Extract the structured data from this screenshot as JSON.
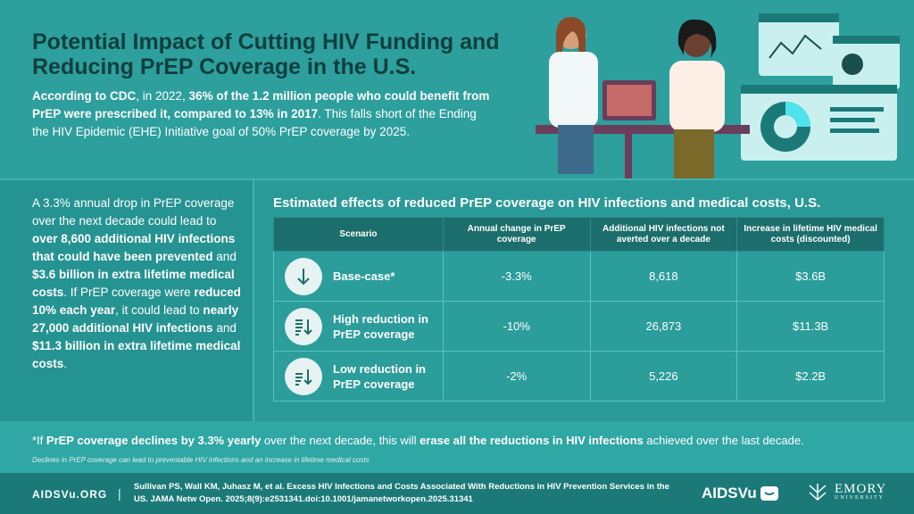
{
  "title": "Potential Impact of Cutting HIV Funding and Reducing PrEP Coverage in the U.S.",
  "intro": {
    "p1": "According to CDC",
    "p2": ", in 2022, ",
    "p3": "36% of the 1.2 million people who could benefit from PrEP were prescribed it, compared to 13% in 2017",
    "p4": ". This falls short of the Ending the HIV Epidemic (EHE) Initiative goal of 50% PrEP coverage by 2025."
  },
  "left": {
    "t1": "A 3.3% annual drop in PrEP coverage over the next decade could lead to ",
    "b1": "over 8,600 additional HIV infections that could have been prevented",
    "t2": " and ",
    "b2": "$3.6 billion in extra lifetime medical costs",
    "t3": ". If PrEP coverage were ",
    "b3": "reduced 10% each year",
    "t4": ", it could lead to ",
    "b4": "nearly 27,000 additional HIV infections",
    "t5": " and ",
    "b5": "$11.3 billion in extra lifetime medical costs",
    "t6": "."
  },
  "table": {
    "title": "Estimated effects of reduced PrEP coverage on HIV infections and medical costs, U.S.",
    "headers": [
      "Scenario",
      "Annual change in PrEP coverage",
      "Additional HIV infections not averted over a decade",
      "Increase in lifetime HIV medical costs (discounted)"
    ],
    "rows": [
      {
        "icon": "arrow-down-icon",
        "scenario": "Base-case*",
        "change": "-3.3%",
        "infections": "8,618",
        "cost": "$3.6B"
      },
      {
        "icon": "sort-descending-icon",
        "scenario": "High reduction in PrEP coverage",
        "change": "-10%",
        "infections": "26,873",
        "cost": "$11.3B"
      },
      {
        "icon": "sort-descending-icon",
        "scenario": "Low reduction in PrEP coverage",
        "change": "-2%",
        "infections": "5,226",
        "cost": "$2.2B"
      }
    ]
  },
  "footnote": {
    "a": "*If ",
    "b": "PrEP coverage declines by 3.3% yearly",
    "c": " over the next decade, this will ",
    "d": "erase all the reductions in HIV infections",
    "e": " achieved over the last decade.",
    "sub": "Declines in PrEP coverage can lead to preventable HIV infections and an increase in lifetime medical costs"
  },
  "footer": {
    "site": "AIDSVu.ORG",
    "separator": "|",
    "citation": "Sullivan PS, Wall KM, Juhasz M, et al. Excess HIV Infections and Costs Associated With Reductions in HIV Prevention Services in the US. JAMA Netw Open. 2025;8(9):e2531341.doi:10.1001/jamanetworkopen.2025.31341",
    "logo1": "AIDSVu",
    "logo2_name": "EMORY",
    "logo2_sub": "UNIVERSITY"
  },
  "colors": {
    "background": "#2a9a98",
    "title": "#0f3f3e",
    "header": "#1c6e6c",
    "footer": "#1b7a78"
  }
}
